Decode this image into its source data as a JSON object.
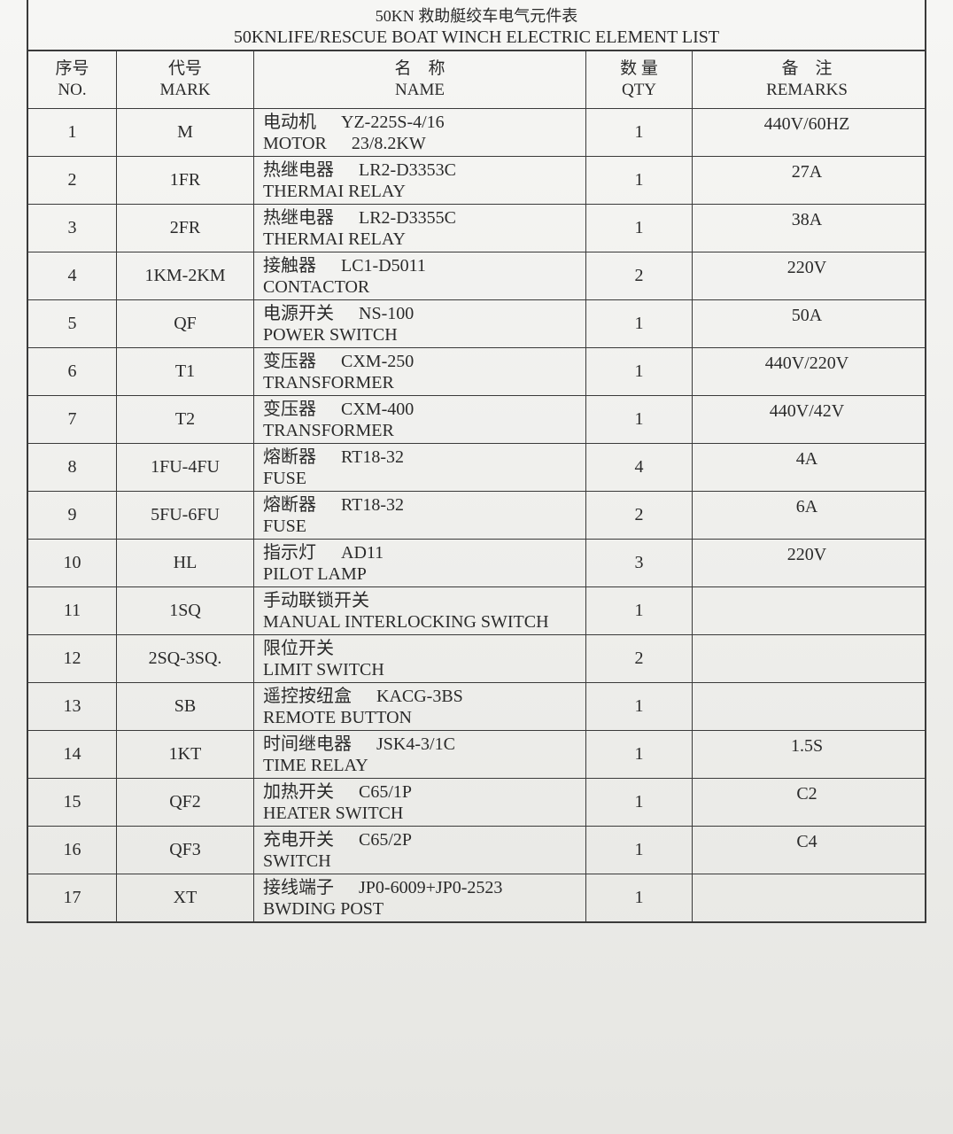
{
  "header": {
    "title_cn": "50KN 救助艇绞车电气元件表",
    "title_en": "50KNLIFE/RESCUE BOAT WINCH ELECTRIC ELEMENT LIST"
  },
  "table": {
    "columns": [
      {
        "cn": "序号",
        "en": "NO."
      },
      {
        "cn": "代号",
        "en": "MARK"
      },
      {
        "cn": "名　称",
        "en": "NAME"
      },
      {
        "cn": "数 量",
        "en": "QTY"
      },
      {
        "cn": "备　注",
        "en": "REMARKS"
      }
    ],
    "rows": [
      {
        "no": "1",
        "mark": "M",
        "name_cn": "电动机",
        "spec": "YZ-225S-4/16",
        "name_en": "MOTOR",
        "spec2": "23/8.2KW",
        "qty": "1",
        "remarks": "440V/60HZ"
      },
      {
        "no": "2",
        "mark": "1FR",
        "name_cn": "热继电器",
        "spec": "LR2-D3353C",
        "name_en": "THERMAI RELAY",
        "qty": "1",
        "remarks": "27A"
      },
      {
        "no": "3",
        "mark": "2FR",
        "name_cn": "热继电器",
        "spec": "LR2-D3355C",
        "name_en": "THERMAI RELAY",
        "qty": "1",
        "remarks": "38A"
      },
      {
        "no": "4",
        "mark": "1KM-2KM",
        "name_cn": "接触器",
        "spec": "LC1-D5011",
        "name_en": "CONTACTOR",
        "qty": "2",
        "remarks": "220V"
      },
      {
        "no": "5",
        "mark": "QF",
        "name_cn": "电源开关",
        "spec": "NS-100",
        "name_en": "POWER SWITCH",
        "qty": "1",
        "remarks": "50A"
      },
      {
        "no": "6",
        "mark": "T1",
        "name_cn": "变压器",
        "spec": "CXM-250",
        "name_en": "TRANSFORMER",
        "qty": "1",
        "remarks": "440V/220V"
      },
      {
        "no": "7",
        "mark": "T2",
        "name_cn": "变压器",
        "spec": "CXM-400",
        "name_en": "TRANSFORMER",
        "qty": "1",
        "remarks": "440V/42V"
      },
      {
        "no": "8",
        "mark": "1FU-4FU",
        "name_cn": "熔断器",
        "spec": "RT18-32",
        "name_en": "FUSE",
        "qty": "4",
        "remarks": "4A"
      },
      {
        "no": "9",
        "mark": "5FU-6FU",
        "name_cn": "熔断器",
        "spec": "RT18-32",
        "name_en": "FUSE",
        "qty": "2",
        "remarks": "6A"
      },
      {
        "no": "10",
        "mark": "HL",
        "name_cn": "指示灯",
        "spec": "AD11",
        "name_en": "PILOT LAMP",
        "qty": "3",
        "remarks": "220V"
      },
      {
        "no": "11",
        "mark": "1SQ",
        "name_cn": "手动联锁开关",
        "name_en": "MANUAL INTERLOCKING SWITCH",
        "qty": "1"
      },
      {
        "no": "12",
        "mark": "2SQ-3SQ.",
        "name_cn": "限位开关",
        "name_en": "LIMIT SWITCH",
        "qty": "2"
      },
      {
        "no": "13",
        "mark": "SB",
        "name_cn": "遥控按纽盒",
        "spec": "KACG-3BS",
        "name_en": "REMOTE BUTTON",
        "qty": "1"
      },
      {
        "no": "14",
        "mark": "1KT",
        "name_cn": "时间继电器",
        "spec": "JSK4-3/1C",
        "name_en": "TIME RELAY",
        "qty": "1",
        "remarks": "1.5S"
      },
      {
        "no": "15",
        "mark": "QF2",
        "name_cn": "加热开关",
        "spec": "C65/1P",
        "name_en": "HEATER SWITCH",
        "qty": "1",
        "remarks": "C2"
      },
      {
        "no": "16",
        "mark": "QF3",
        "name_cn": "充电开关",
        "spec": "C65/2P",
        "name_en": "SWITCH",
        "qty": "1",
        "remarks": "C4"
      },
      {
        "no": "17",
        "mark": "XT",
        "name_cn": "接线端子",
        "spec": "JP0-6009+JP0-2523",
        "name_en": "BWDING POST",
        "qty": "1"
      }
    ]
  }
}
